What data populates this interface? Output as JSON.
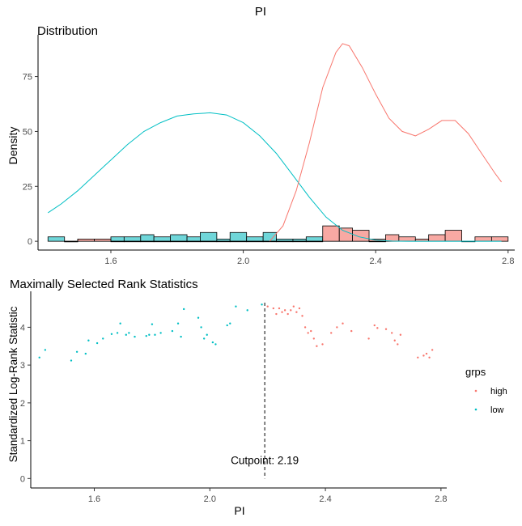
{
  "page": {
    "title": "PI"
  },
  "colors": {
    "high": "#F8766D",
    "low": "#00BFC4",
    "high_fill": "#F8A9A3",
    "low_fill": "#6FD6D9"
  },
  "chart_data": [
    {
      "type": "bar",
      "title": "Distribution",
      "xlabel": "",
      "ylabel": "Density",
      "xlim": [
        1.38,
        2.82
      ],
      "ylim": [
        -4,
        94
      ],
      "xticks": [
        "1.6",
        "2.0",
        "2.4",
        "2.8"
      ],
      "yticks": [
        "0",
        "25",
        "50",
        "75"
      ],
      "histograms": [
        {
          "name": "low",
          "bins": [
            {
              "x0": 1.41,
              "x1": 1.46,
              "y": 2
            },
            {
              "x0": 1.46,
              "x1": 1.5,
              "y": 0
            },
            {
              "x0": 1.5,
              "x1": 1.55,
              "y": 1
            },
            {
              "x0": 1.55,
              "x1": 1.6,
              "y": 1
            },
            {
              "x0": 1.6,
              "x1": 1.64,
              "y": 2
            },
            {
              "x0": 1.64,
              "x1": 1.69,
              "y": 2
            },
            {
              "x0": 1.69,
              "x1": 1.73,
              "y": 3
            },
            {
              "x0": 1.73,
              "x1": 1.78,
              "y": 2
            },
            {
              "x0": 1.78,
              "x1": 1.83,
              "y": 3
            },
            {
              "x0": 1.83,
              "x1": 1.87,
              "y": 2
            },
            {
              "x0": 1.87,
              "x1": 1.92,
              "y": 4
            },
            {
              "x0": 1.92,
              "x1": 1.96,
              "y": 1
            },
            {
              "x0": 1.96,
              "x1": 2.01,
              "y": 4
            },
            {
              "x0": 2.01,
              "x1": 2.06,
              "y": 2
            },
            {
              "x0": 2.06,
              "x1": 2.1,
              "y": 4
            },
            {
              "x0": 2.1,
              "x1": 2.15,
              "y": 1
            },
            {
              "x0": 2.15,
              "x1": 2.19,
              "y": 1
            },
            {
              "x0": 2.19,
              "x1": 2.24,
              "y": 2
            },
            {
              "x0": 2.24,
              "x1": 2.29,
              "y": 1
            },
            {
              "x0": 2.29,
              "x1": 2.33,
              "y": 1
            },
            {
              "x0": 2.33,
              "x1": 2.38,
              "y": 1
            },
            {
              "x0": 2.38,
              "x1": 2.43,
              "y": 0
            }
          ]
        },
        {
          "name": "high",
          "bins": [
            {
              "x0": 1.46,
              "x1": 1.5,
              "y": 0
            },
            {
              "x0": 1.5,
              "x1": 1.55,
              "y": 1
            },
            {
              "x0": 1.55,
              "x1": 1.6,
              "y": 1
            },
            {
              "x0": 1.6,
              "x1": 1.64,
              "y": 0
            },
            {
              "x0": 1.64,
              "x1": 1.69,
              "y": 0
            },
            {
              "x0": 1.69,
              "x1": 1.73,
              "y": 0
            },
            {
              "x0": 1.73,
              "x1": 1.78,
              "y": 0
            },
            {
              "x0": 1.78,
              "x1": 1.83,
              "y": 0
            },
            {
              "x0": 1.83,
              "x1": 1.87,
              "y": 0
            },
            {
              "x0": 1.87,
              "x1": 1.92,
              "y": 0
            },
            {
              "x0": 1.92,
              "x1": 1.96,
              "y": 0
            },
            {
              "x0": 1.96,
              "x1": 2.01,
              "y": 0
            },
            {
              "x0": 2.01,
              "x1": 2.06,
              "y": 0
            },
            {
              "x0": 2.06,
              "x1": 2.1,
              "y": 0
            },
            {
              "x0": 2.1,
              "x1": 2.15,
              "y": 0
            },
            {
              "x0": 2.15,
              "x1": 2.19,
              "y": 0
            },
            {
              "x0": 2.19,
              "x1": 2.24,
              "y": 0
            },
            {
              "x0": 2.24,
              "x1": 2.29,
              "y": 7
            },
            {
              "x0": 2.29,
              "x1": 2.33,
              "y": 6
            },
            {
              "x0": 2.33,
              "x1": 2.38,
              "y": 5
            },
            {
              "x0": 2.38,
              "x1": 2.43,
              "y": 1
            },
            {
              "x0": 2.43,
              "x1": 2.47,
              "y": 3
            },
            {
              "x0": 2.47,
              "x1": 2.52,
              "y": 2
            },
            {
              "x0": 2.52,
              "x1": 2.56,
              "y": 1
            },
            {
              "x0": 2.56,
              "x1": 2.61,
              "y": 3
            },
            {
              "x0": 2.61,
              "x1": 2.66,
              "y": 5
            },
            {
              "x0": 2.66,
              "x1": 2.7,
              "y": 0
            },
            {
              "x0": 2.7,
              "x1": 2.75,
              "y": 2
            },
            {
              "x0": 2.75,
              "x1": 2.8,
              "y": 2
            }
          ]
        }
      ],
      "density_series": [
        {
          "name": "low",
          "x": [
            1.41,
            1.45,
            1.5,
            1.55,
            1.6,
            1.65,
            1.7,
            1.75,
            1.8,
            1.85,
            1.9,
            1.95,
            2.0,
            2.05,
            2.1,
            2.15,
            2.2,
            2.25,
            2.3,
            2.35,
            2.4,
            2.45,
            2.5,
            2.55,
            2.6,
            2.65,
            2.7,
            2.75,
            2.78
          ],
          "y": [
            13,
            17,
            23,
            30,
            37,
            44,
            50,
            54,
            57,
            58,
            58.5,
            57.5,
            54,
            48,
            40,
            30,
            20,
            11,
            5,
            2,
            0.5,
            0.1,
            0,
            0,
            0,
            0,
            0,
            0,
            0
          ]
        },
        {
          "name": "high",
          "x": [
            2.08,
            2.12,
            2.16,
            2.2,
            2.24,
            2.28,
            2.3,
            2.32,
            2.36,
            2.4,
            2.44,
            2.48,
            2.52,
            2.56,
            2.6,
            2.64,
            2.68,
            2.72,
            2.76,
            2.78
          ],
          "y": [
            0,
            7,
            23,
            45,
            70,
            86,
            90,
            89,
            79,
            67,
            56,
            50,
            48,
            51,
            55,
            55,
            49,
            40,
            31,
            27
          ]
        }
      ]
    },
    {
      "type": "scatter",
      "title": "Maximally Selected Rank Statistics",
      "xlabel": "PI",
      "ylabel": "Standardized Log-Rank Statistic",
      "xlim": [
        1.38,
        2.82
      ],
      "ylim": [
        -0.25,
        4.95
      ],
      "xticks": [
        "1.6",
        "2.0",
        "2.4",
        "2.8"
      ],
      "yticks": [
        "0",
        "1",
        "2",
        "3",
        "4"
      ],
      "cutpoint": 2.19,
      "annotation": "Cutpoint: 2.19",
      "legend": {
        "title": "grps",
        "position": "right",
        "items": [
          "high",
          "low"
        ]
      },
      "series": [
        {
          "name": "low",
          "points": [
            [
              1.41,
              3.2
            ],
            [
              1.43,
              3.4
            ],
            [
              1.52,
              3.12
            ],
            [
              1.54,
              3.35
            ],
            [
              1.57,
              3.3
            ],
            [
              1.58,
              3.65
            ],
            [
              1.61,
              3.58
            ],
            [
              1.63,
              3.7
            ],
            [
              1.66,
              3.82
            ],
            [
              1.68,
              3.85
            ],
            [
              1.69,
              4.1
            ],
            [
              1.71,
              3.8
            ],
            [
              1.72,
              3.85
            ],
            [
              1.74,
              3.75
            ],
            [
              1.78,
              3.77
            ],
            [
              1.79,
              3.8
            ],
            [
              1.8,
              4.08
            ],
            [
              1.81,
              3.8
            ],
            [
              1.83,
              3.85
            ],
            [
              1.87,
              3.9
            ],
            [
              1.89,
              4.1
            ],
            [
              1.9,
              3.75
            ],
            [
              1.91,
              4.48
            ],
            [
              1.96,
              4.25
            ],
            [
              1.97,
              4.0
            ],
            [
              1.98,
              3.7
            ],
            [
              1.99,
              3.8
            ],
            [
              2.01,
              3.6
            ],
            [
              2.02,
              3.55
            ],
            [
              2.06,
              4.05
            ],
            [
              2.07,
              4.1
            ],
            [
              2.09,
              4.55
            ],
            [
              2.13,
              4.45
            ],
            [
              2.18,
              4.6
            ]
          ]
        },
        {
          "name": "high",
          "points": [
            [
              2.2,
              4.55
            ],
            [
              2.22,
              4.5
            ],
            [
              2.23,
              4.35
            ],
            [
              2.24,
              4.5
            ],
            [
              2.25,
              4.4
            ],
            [
              2.26,
              4.45
            ],
            [
              2.27,
              4.35
            ],
            [
              2.28,
              4.45
            ],
            [
              2.29,
              4.55
            ],
            [
              2.3,
              4.4
            ],
            [
              2.31,
              4.5
            ],
            [
              2.32,
              4.3
            ],
            [
              2.33,
              4.0
            ],
            [
              2.34,
              3.85
            ],
            [
              2.35,
              3.9
            ],
            [
              2.36,
              3.7
            ],
            [
              2.37,
              3.5
            ],
            [
              2.39,
              3.55
            ],
            [
              2.42,
              3.85
            ],
            [
              2.44,
              4.0
            ],
            [
              2.46,
              4.1
            ],
            [
              2.49,
              3.9
            ],
            [
              2.55,
              3.7
            ],
            [
              2.57,
              4.05
            ],
            [
              2.58,
              3.98
            ],
            [
              2.61,
              3.95
            ],
            [
              2.63,
              3.85
            ],
            [
              2.64,
              3.65
            ],
            [
              2.65,
              3.55
            ],
            [
              2.66,
              3.8
            ],
            [
              2.72,
              3.2
            ],
            [
              2.74,
              3.25
            ],
            [
              2.75,
              3.3
            ],
            [
              2.76,
              3.2
            ],
            [
              2.77,
              3.4
            ]
          ]
        }
      ]
    }
  ]
}
